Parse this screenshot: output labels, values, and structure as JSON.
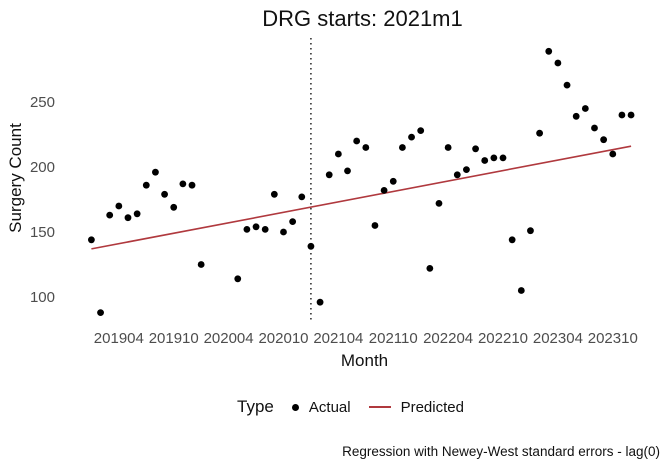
{
  "chart_data": {
    "type": "scatter",
    "title": "DRG starts: 2021m1",
    "xlabel": "Month",
    "ylabel": "Surgery Count",
    "y_ticks": [
      100,
      150,
      200,
      250
    ],
    "x_tick_labels": [
      "201904",
      "201910",
      "202004",
      "202010",
      "202104",
      "202110",
      "202204",
      "202210",
      "202304",
      "202310"
    ],
    "ylim": [
      80,
      300
    ],
    "grid": false,
    "vline_month": "202101",
    "missing_months": [
      "202002",
      "202003",
      "202004"
    ],
    "series": [
      {
        "name": "Actual",
        "kind": "scatter",
        "color": "#000000",
        "points": [
          [
            "201901",
            144
          ],
          [
            "201902",
            88
          ],
          [
            "201903",
            163
          ],
          [
            "201904",
            170
          ],
          [
            "201905",
            161
          ],
          [
            "201906",
            164
          ],
          [
            "201907",
            186
          ],
          [
            "201908",
            196
          ],
          [
            "201909",
            179
          ],
          [
            "201910",
            169
          ],
          [
            "201911",
            187
          ],
          [
            "201912",
            186
          ],
          [
            "202001",
            125
          ],
          [
            "202005",
            114
          ],
          [
            "202006",
            152
          ],
          [
            "202007",
            154
          ],
          [
            "202008",
            152
          ],
          [
            "202009",
            179
          ],
          [
            "202010",
            150
          ],
          [
            "202011",
            158
          ],
          [
            "202012",
            177
          ],
          [
            "202101",
            139
          ],
          [
            "202102",
            96
          ],
          [
            "202103",
            194
          ],
          [
            "202104",
            210
          ],
          [
            "202105",
            197
          ],
          [
            "202106",
            220
          ],
          [
            "202107",
            215
          ],
          [
            "202108",
            155
          ],
          [
            "202109",
            182
          ],
          [
            "202110",
            189
          ],
          [
            "202111",
            215
          ],
          [
            "202112",
            223
          ],
          [
            "202201",
            228
          ],
          [
            "202202",
            122
          ],
          [
            "202203",
            172
          ],
          [
            "202204",
            215
          ],
          [
            "202205",
            194
          ],
          [
            "202206",
            198
          ],
          [
            "202207",
            214
          ],
          [
            "202208",
            205
          ],
          [
            "202209",
            207
          ],
          [
            "202210",
            207
          ],
          [
            "202211",
            144
          ],
          [
            "202212",
            105
          ],
          [
            "202301",
            151
          ],
          [
            "202302",
            226
          ],
          [
            "202303",
            289
          ],
          [
            "202304",
            280
          ],
          [
            "202305",
            263
          ],
          [
            "202306",
            239
          ],
          [
            "202307",
            245
          ],
          [
            "202308",
            230
          ],
          [
            "202309",
            221
          ],
          [
            "202310",
            210
          ],
          [
            "202311",
            240
          ],
          [
            "202312",
            240
          ]
        ]
      },
      {
        "name": "Predicted",
        "kind": "line",
        "color": "#b0393e",
        "points": [
          [
            "201901",
            137
          ],
          [
            "202312",
            216
          ]
        ]
      }
    ],
    "legend": {
      "title": "Type",
      "position": "bottom",
      "entries": [
        {
          "label": "Actual",
          "marker": "dot",
          "color": "#000000"
        },
        {
          "label": "Predicted",
          "marker": "line",
          "color": "#b0393e"
        }
      ]
    },
    "caption": "Regression with Newey-West standard errors - lag(0)"
  },
  "colors": {
    "tick_label": "#4d4d4d",
    "vline": "#000000",
    "background": "#ffffff"
  }
}
